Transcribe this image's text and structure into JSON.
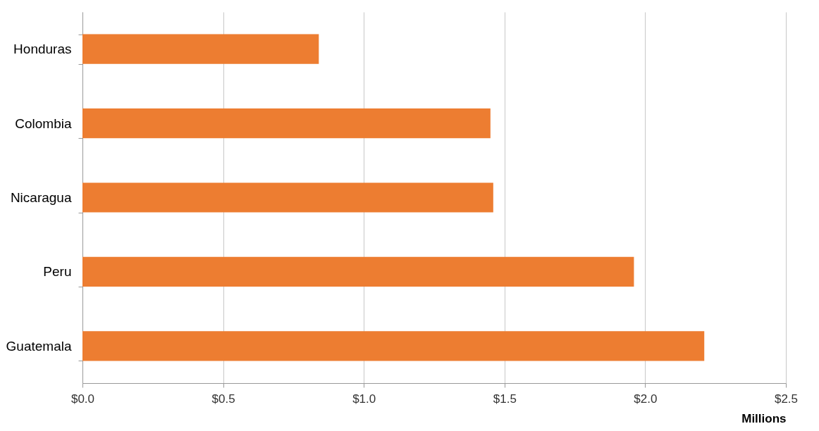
{
  "chart_data": {
    "type": "bar",
    "orientation": "horizontal",
    "xlabel": "Millions",
    "categories": [
      "Honduras",
      "Colombia",
      "Nicaragua",
      "Peru",
      "Guatemala"
    ],
    "values": [
      0.84,
      1.45,
      1.46,
      1.96,
      2.21
    ],
    "color": "#ed7d31",
    "xlim": [
      0,
      2.5
    ],
    "xticks": [
      {
        "value": 0,
        "label": "$0.0"
      },
      {
        "value": 0.5,
        "label": "$0.5"
      },
      {
        "value": 1,
        "label": "$1.0"
      },
      {
        "value": 1.5,
        "label": "$1.5"
      },
      {
        "value": 2,
        "label": "$2.0"
      },
      {
        "value": 2.5,
        "label": "$2.5"
      }
    ],
    "grid": "x"
  }
}
